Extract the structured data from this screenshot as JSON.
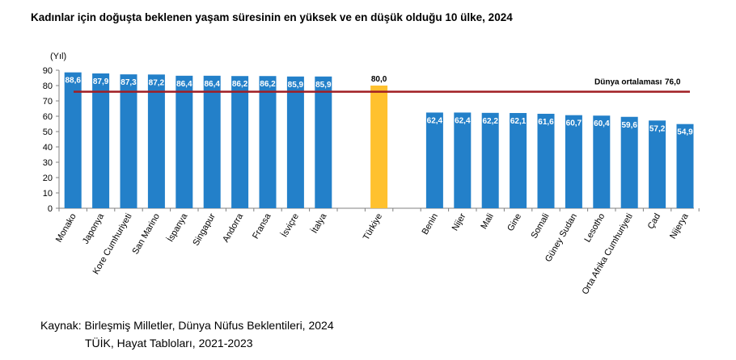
{
  "chart_data": {
    "type": "bar",
    "title": "Kadınlar için doğuşta beklenen yaşam süresinin en yüksek ve en düşük olduğu 10 ülke, 2024",
    "ylabel": "(Yıl)",
    "xlabel": "",
    "ylim": [
      0,
      90
    ],
    "yticks": [
      0,
      10,
      20,
      30,
      40,
      50,
      60,
      70,
      80,
      90
    ],
    "grid": false,
    "categories": [
      "Monako",
      "Japonya",
      "Kore Cumhuriyeti",
      "San Marino",
      "İspanya",
      "Singapur",
      "Andorra",
      "Fransa",
      "İsviçre",
      "İtalya",
      "",
      "Türkiye",
      "",
      "Benin",
      "Nijer",
      "Mali",
      "Gine",
      "Somali",
      "Güney Sudan",
      "Lesotho",
      "Orta Afrika Cumhuriyeti",
      "Çad",
      "Nijerya"
    ],
    "values": [
      88.6,
      87.9,
      87.3,
      87.2,
      86.4,
      86.4,
      86.2,
      86.2,
      85.9,
      85.9,
      null,
      80.0,
      null,
      62.4,
      62.4,
      62.2,
      62.1,
      61.6,
      60.7,
      60.4,
      59.6,
      57.2,
      54.9
    ],
    "value_labels": [
      "88,6",
      "87,9",
      "87,3",
      "87,2",
      "86,4",
      "86,4",
      "86,2",
      "86,2",
      "85,9",
      "85,9",
      "",
      "80,0",
      "",
      "62,4",
      "62,4",
      "62,2",
      "62,1",
      "61,6",
      "60,7",
      "60,4",
      "59,6",
      "57,2",
      "54,9"
    ],
    "highlight_category": "Türkiye",
    "reference_line": {
      "label": "Dünya ortalaması",
      "value": 76.0,
      "value_label": "76,0"
    },
    "colors": {
      "bar": "#2380C9",
      "highlight": "#FFC12E",
      "reference_line": "#A01E23",
      "axis": "#808080"
    }
  },
  "source": {
    "line1": "Kaynak: Birleşmiş Milletler, Dünya Nüfus Beklentileri, 2024",
    "line2": "TÜİK, Hayat Tabloları, 2021-2023"
  }
}
